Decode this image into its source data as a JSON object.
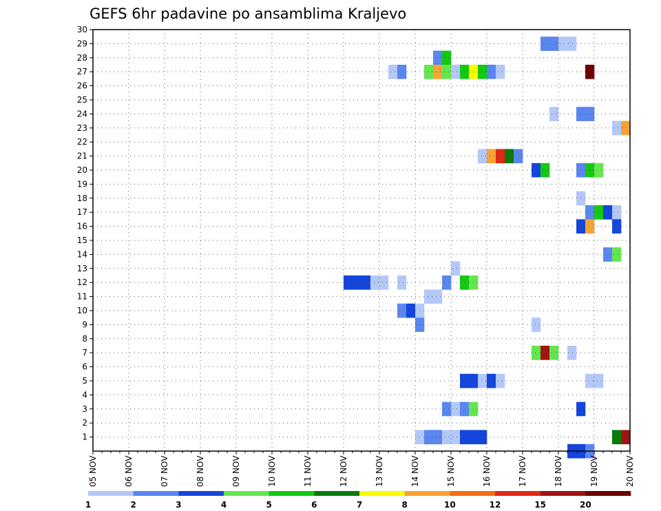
{
  "chart_data": {
    "type": "heatmap",
    "title": "GEFS 6hr padavine po ansamblima Kraljevo",
    "xlabel": "",
    "ylabel": "",
    "x_tick_labels": [
      "05 NOV",
      "06 NOV",
      "07 NOV",
      "08 NOV",
      "09 NOV",
      "10 NOV",
      "11 NOV",
      "12 NOV",
      "13 NOV",
      "14 NOV",
      "15 NOV",
      "16 NOV",
      "17 NOV",
      "18 NOV",
      "19 NOV",
      "20 NOV"
    ],
    "x_range_days": [
      5,
      20
    ],
    "y_tick_labels": [
      "1",
      "2",
      "3",
      "4",
      "5",
      "6",
      "7",
      "8",
      "9",
      "10",
      "11",
      "12",
      "13",
      "14",
      "15",
      "16",
      "17",
      "18",
      "19",
      "20",
      "21",
      "22",
      "23",
      "24",
      "25",
      "26",
      "27",
      "28",
      "29",
      "30"
    ],
    "y_range": [
      0,
      30
    ],
    "grid": true,
    "colorbar": {
      "labels": [
        "1",
        "2",
        "3",
        "4",
        "5",
        "6",
        "7",
        "8",
        "10",
        "12",
        "15",
        "20"
      ],
      "colors": [
        "#b4c8f8",
        "#5a86f0",
        "#1446dc",
        "#64e650",
        "#14c814",
        "#0a7a0a",
        "#fafa00",
        "#f7a334",
        "#f06e14",
        "#e12814",
        "#a01414",
        "#6e0000"
      ]
    },
    "cells_note": "each cell: m = ensemble member (row), t = time in days (Nov), c = colour class index (0=1mm ... 11=20mm)",
    "cells": [
      {
        "m": 29,
        "t": 17.5,
        "c": 1
      },
      {
        "m": 29,
        "t": 17.75,
        "c": 1
      },
      {
        "m": 29,
        "t": 18.0,
        "c": 0
      },
      {
        "m": 29,
        "t": 18.25,
        "c": 0
      },
      {
        "m": 28,
        "t": 14.5,
        "c": 1
      },
      {
        "m": 28,
        "t": 14.75,
        "c": 4
      },
      {
        "m": 27,
        "t": 13.25,
        "c": 0
      },
      {
        "m": 27,
        "t": 13.5,
        "c": 1
      },
      {
        "m": 27,
        "t": 14.25,
        "c": 3
      },
      {
        "m": 27,
        "t": 14.5,
        "c": 7
      },
      {
        "m": 27,
        "t": 14.75,
        "c": 3
      },
      {
        "m": 27,
        "t": 15.0,
        "c": 0
      },
      {
        "m": 27,
        "t": 15.25,
        "c": 4
      },
      {
        "m": 27,
        "t": 15.5,
        "c": 6
      },
      {
        "m": 27,
        "t": 15.75,
        "c": 4
      },
      {
        "m": 27,
        "t": 16.0,
        "c": 1
      },
      {
        "m": 27,
        "t": 16.25,
        "c": 0
      },
      {
        "m": 27,
        "t": 18.75,
        "c": 11
      },
      {
        "m": 24,
        "t": 17.75,
        "c": 0
      },
      {
        "m": 24,
        "t": 18.5,
        "c": 1
      },
      {
        "m": 24,
        "t": 18.75,
        "c": 1
      },
      {
        "m": 23,
        "t": 19.5,
        "c": 0
      },
      {
        "m": 23,
        "t": 19.75,
        "c": 7
      },
      {
        "m": 21,
        "t": 15.75,
        "c": 0
      },
      {
        "m": 21,
        "t": 16.0,
        "c": 7
      },
      {
        "m": 21,
        "t": 16.25,
        "c": 9
      },
      {
        "m": 21,
        "t": 16.5,
        "c": 5
      },
      {
        "m": 21,
        "t": 16.75,
        "c": 1
      },
      {
        "m": 20,
        "t": 17.25,
        "c": 2
      },
      {
        "m": 20,
        "t": 17.5,
        "c": 4
      },
      {
        "m": 20,
        "t": 18.5,
        "c": 1
      },
      {
        "m": 20,
        "t": 18.75,
        "c": 4
      },
      {
        "m": 20,
        "t": 19.0,
        "c": 3
      },
      {
        "m": 18,
        "t": 18.5,
        "c": 0
      },
      {
        "m": 17,
        "t": 18.75,
        "c": 1
      },
      {
        "m": 17,
        "t": 19.0,
        "c": 4
      },
      {
        "m": 17,
        "t": 19.25,
        "c": 2
      },
      {
        "m": 17,
        "t": 19.5,
        "c": 0
      },
      {
        "m": 16,
        "t": 18.5,
        "c": 2
      },
      {
        "m": 16,
        "t": 18.75,
        "c": 7
      },
      {
        "m": 16,
        "t": 19.5,
        "c": 2
      },
      {
        "m": 14,
        "t": 19.25,
        "c": 1
      },
      {
        "m": 14,
        "t": 19.5,
        "c": 3
      },
      {
        "m": 13,
        "t": 15.0,
        "c": 0
      },
      {
        "m": 12,
        "t": 12.0,
        "c": 2
      },
      {
        "m": 12,
        "t": 12.25,
        "c": 2
      },
      {
        "m": 12,
        "t": 12.5,
        "c": 2
      },
      {
        "m": 12,
        "t": 12.75,
        "c": 0
      },
      {
        "m": 12,
        "t": 13.0,
        "c": 0
      },
      {
        "m": 12,
        "t": 13.5,
        "c": 0
      },
      {
        "m": 12,
        "t": 14.75,
        "c": 1
      },
      {
        "m": 12,
        "t": 15.25,
        "c": 4
      },
      {
        "m": 12,
        "t": 15.5,
        "c": 3
      },
      {
        "m": 11,
        "t": 14.25,
        "c": 0
      },
      {
        "m": 11,
        "t": 14.5,
        "c": 0
      },
      {
        "m": 10,
        "t": 13.5,
        "c": 1
      },
      {
        "m": 10,
        "t": 13.75,
        "c": 2
      },
      {
        "m": 10,
        "t": 14.0,
        "c": 0
      },
      {
        "m": 9,
        "t": 14.0,
        "c": 1
      },
      {
        "m": 9,
        "t": 17.25,
        "c": 0
      },
      {
        "m": 7,
        "t": 17.25,
        "c": 3
      },
      {
        "m": 7,
        "t": 17.5,
        "c": 10
      },
      {
        "m": 7,
        "t": 17.75,
        "c": 3
      },
      {
        "m": 7,
        "t": 18.25,
        "c": 0
      },
      {
        "m": 5,
        "t": 15.25,
        "c": 2
      },
      {
        "m": 5,
        "t": 15.5,
        "c": 2
      },
      {
        "m": 5,
        "t": 15.75,
        "c": 0
      },
      {
        "m": 5,
        "t": 16.0,
        "c": 2
      },
      {
        "m": 5,
        "t": 16.25,
        "c": 0
      },
      {
        "m": 5,
        "t": 18.75,
        "c": 0
      },
      {
        "m": 5,
        "t": 19.0,
        "c": 0
      },
      {
        "m": 3,
        "t": 14.75,
        "c": 1
      },
      {
        "m": 3,
        "t": 15.0,
        "c": 0
      },
      {
        "m": 3,
        "t": 15.25,
        "c": 1
      },
      {
        "m": 3,
        "t": 15.5,
        "c": 3
      },
      {
        "m": 3,
        "t": 18.5,
        "c": 2
      },
      {
        "m": 1,
        "t": 14.0,
        "c": 0
      },
      {
        "m": 1,
        "t": 14.25,
        "c": 1
      },
      {
        "m": 1,
        "t": 14.5,
        "c": 1
      },
      {
        "m": 1,
        "t": 14.75,
        "c": 0
      },
      {
        "m": 1,
        "t": 15.0,
        "c": 0
      },
      {
        "m": 1,
        "t": 15.25,
        "c": 2
      },
      {
        "m": 1,
        "t": 15.5,
        "c": 2
      },
      {
        "m": 1,
        "t": 15.75,
        "c": 2
      },
      {
        "m": 1,
        "t": 19.5,
        "c": 5
      },
      {
        "m": 1,
        "t": 19.75,
        "c": 10
      },
      {
        "m": 0,
        "t": 18.25,
        "c": 2
      },
      {
        "m": 0,
        "t": 18.5,
        "c": 2
      },
      {
        "m": 0,
        "t": 18.75,
        "c": 1
      }
    ]
  }
}
